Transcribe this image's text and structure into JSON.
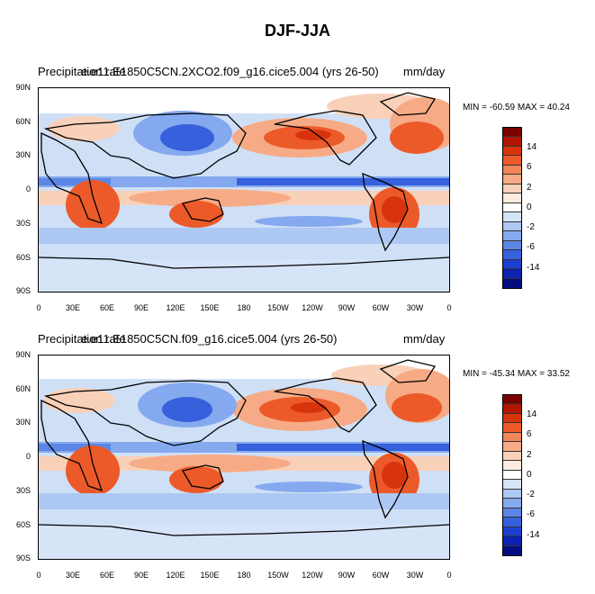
{
  "title": "DJF-JJA",
  "panels": [
    {
      "title": "Precipitation rate",
      "subtitle": "e.e11.E1850C5CN.2XCO2.f09_g16.cice5.004 (yrs 26-50)",
      "units": "mm/day",
      "minmax": "MIN = -60.59 MAX =  40.24"
    },
    {
      "title": "Precipitation rate",
      "subtitle": "e.e11.E1850C5CN.f09_g16.cice5.004 (yrs 26-50)",
      "units": "mm/day",
      "minmax": "MIN = -45.34 MAX =  33.52"
    }
  ],
  "lat_labels": [
    "90N",
    "60N",
    "30N",
    "0",
    "30S",
    "60S",
    "90S"
  ],
  "lon_labels": [
    "0",
    "30E",
    "60E",
    "90E",
    "120E",
    "150E",
    "180",
    "150W",
    "120W",
    "90W",
    "60W",
    "30W",
    "0"
  ],
  "colorbar_labels": [
    "14",
    "6",
    "2",
    "0",
    "-2",
    "-6",
    "-14"
  ],
  "colorbar_colors": [
    "#7a0000",
    "#b01600",
    "#d8340c",
    "#ec5a2a",
    "#f2865a",
    "#f6ab86",
    "#f9d0b8",
    "#fdecdf",
    "#ffffff",
    "#d6e4f8",
    "#adc8f2",
    "#85a9ee",
    "#5c86e6",
    "#3660dc",
    "#1c3ed0",
    "#0c22b0",
    "#040d80"
  ]
}
